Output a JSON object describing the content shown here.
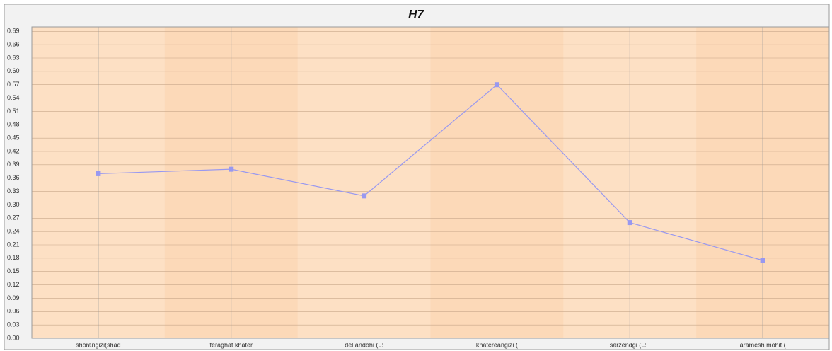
{
  "chart_data": {
    "type": "line",
    "title": "H7",
    "categories": [
      "shorangizi(shad",
      "feraghat khater",
      "del andohi (L:",
      "khatereangizi (",
      "sarzendgi (L: .",
      "aramesh mohit ("
    ],
    "values": [
      0.37,
      0.38,
      0.32,
      0.57,
      0.26,
      0.175
    ],
    "color": "#9898f0",
    "ylim": [
      0,
      0.7
    ],
    "yticks": [
      {
        "value": 0,
        "label": "0.00"
      },
      0.03,
      0.06,
      0.09,
      0.12,
      0.15,
      0.18,
      0.21,
      0.24,
      0.27,
      {
        "value": 0.3,
        "label": "0.30"
      },
      0.33,
      0.36,
      0.39,
      0.42,
      0.45,
      0.48,
      0.51,
      0.54,
      0.57,
      {
        "value": 0.6,
        "label": "0.60"
      },
      0.63,
      0.66,
      0.69
    ],
    "grid": true
  }
}
